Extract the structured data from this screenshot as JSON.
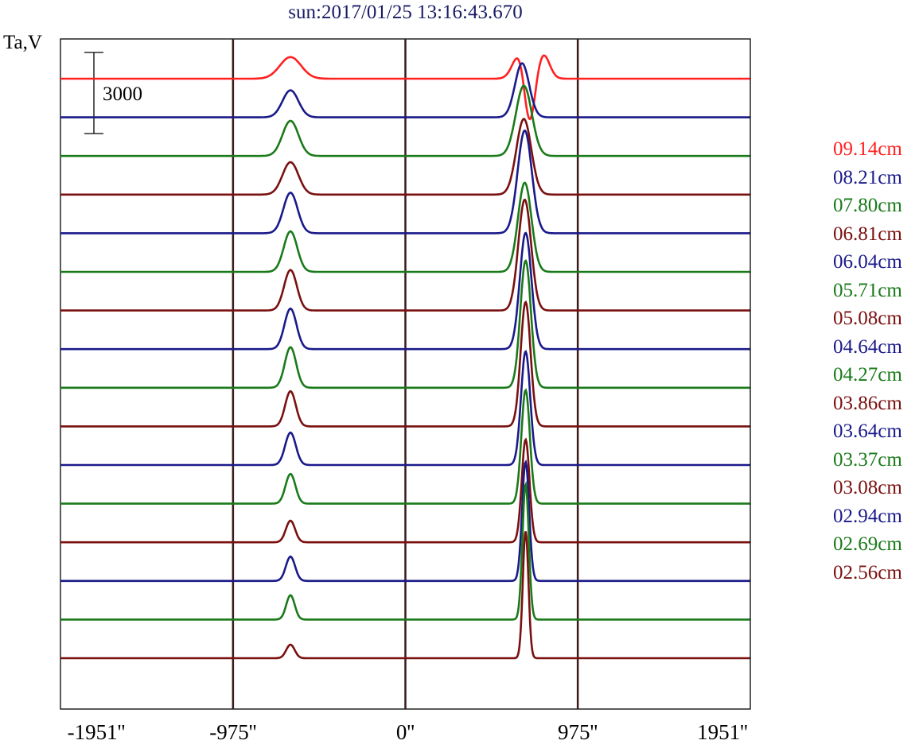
{
  "chart_data": {
    "type": "line",
    "title": "sun:2017/01/25 13:16:43.670",
    "ylabel": "Ta,V",
    "scale_bar_label": "3000",
    "xlim": [
      -1951,
      1951
    ],
    "x_ticks": [
      -1951,
      -975,
      0,
      975,
      1951
    ],
    "x_tick_labels": [
      "-1951''",
      "-975''",
      "0''",
      "975''",
      "1951''"
    ],
    "vlines": [
      -975,
      0,
      975
    ],
    "vline_color": "#3a1a1a",
    "grid": false,
    "legend_position": "right",
    "series": [
      {
        "name": "09.14cm",
        "color": "#ff2020",
        "peaks": [
          {
            "x": 650,
            "h": 1000,
            "w": 40
          },
          {
            "x": 700,
            "h": -2000,
            "w": 30
          },
          {
            "x": 780,
            "h": 900,
            "w": 35
          },
          {
            "x": -650,
            "h": 800,
            "w": 60
          }
        ]
      },
      {
        "name": "08.21cm",
        "color": "#1a1a8a",
        "peaks": [
          {
            "x": 660,
            "h": 2000,
            "w": 40
          },
          {
            "x": -650,
            "h": 1000,
            "w": 45
          }
        ]
      },
      {
        "name": "07.80cm",
        "color": "#1a7a1a",
        "peaks": [
          {
            "x": 670,
            "h": 2600,
            "w": 45
          },
          {
            "x": -650,
            "h": 1300,
            "w": 45
          }
        ]
      },
      {
        "name": "06.81cm",
        "color": "#7a1010",
        "peaks": [
          {
            "x": 670,
            "h": 2800,
            "w": 42
          },
          {
            "x": -650,
            "h": 1200,
            "w": 45
          }
        ]
      },
      {
        "name": "06.04cm",
        "color": "#1a1a8a",
        "peaks": [
          {
            "x": 675,
            "h": 3800,
            "w": 40
          },
          {
            "x": -650,
            "h": 1500,
            "w": 40
          }
        ]
      },
      {
        "name": "05.71cm",
        "color": "#1a7a1a",
        "peaks": [
          {
            "x": 675,
            "h": 3300,
            "w": 38
          },
          {
            "x": -650,
            "h": 1500,
            "w": 38
          }
        ]
      },
      {
        "name": "05.08cm",
        "color": "#7a1010",
        "peaks": [
          {
            "x": 675,
            "h": 4100,
            "w": 36
          },
          {
            "x": -650,
            "h": 1500,
            "w": 36
          }
        ]
      },
      {
        "name": "04.64cm",
        "color": "#1a1a8a",
        "peaks": [
          {
            "x": 680,
            "h": 4300,
            "w": 33
          },
          {
            "x": -650,
            "h": 1500,
            "w": 34
          }
        ]
      },
      {
        "name": "04.27cm",
        "color": "#1a7a1a",
        "peaks": [
          {
            "x": 680,
            "h": 4700,
            "w": 30
          },
          {
            "x": -650,
            "h": 1500,
            "w": 32
          }
        ]
      },
      {
        "name": "03.86cm",
        "color": "#7a1010",
        "peaks": [
          {
            "x": 680,
            "h": 4600,
            "w": 28
          },
          {
            "x": -650,
            "h": 1300,
            "w": 30
          }
        ]
      },
      {
        "name": "03.64cm",
        "color": "#1a1a8a",
        "peaks": [
          {
            "x": 680,
            "h": 4200,
            "w": 26
          },
          {
            "x": -650,
            "h": 1200,
            "w": 30
          }
        ]
      },
      {
        "name": "03.37cm",
        "color": "#1a7a1a",
        "peaks": [
          {
            "x": 680,
            "h": 4200,
            "w": 24
          },
          {
            "x": -650,
            "h": 1100,
            "w": 28
          }
        ]
      },
      {
        "name": "03.08cm",
        "color": "#7a1010",
        "peaks": [
          {
            "x": 680,
            "h": 3800,
            "w": 22
          },
          {
            "x": -650,
            "h": 800,
            "w": 26
          }
        ]
      },
      {
        "name": "02.94cm",
        "color": "#1a1a8a",
        "peaks": [
          {
            "x": 680,
            "h": 4400,
            "w": 20
          },
          {
            "x": -650,
            "h": 900,
            "w": 26
          }
        ]
      },
      {
        "name": "02.69cm",
        "color": "#1a7a1a",
        "peaks": [
          {
            "x": 680,
            "h": 5000,
            "w": 18
          },
          {
            "x": -650,
            "h": 900,
            "w": 24
          }
        ]
      },
      {
        "name": "02.56cm",
        "color": "#7a1010",
        "peaks": [
          {
            "x": 680,
            "h": 4700,
            "w": 16
          },
          {
            "x": -650,
            "h": 500,
            "w": 24
          }
        ]
      }
    ]
  }
}
